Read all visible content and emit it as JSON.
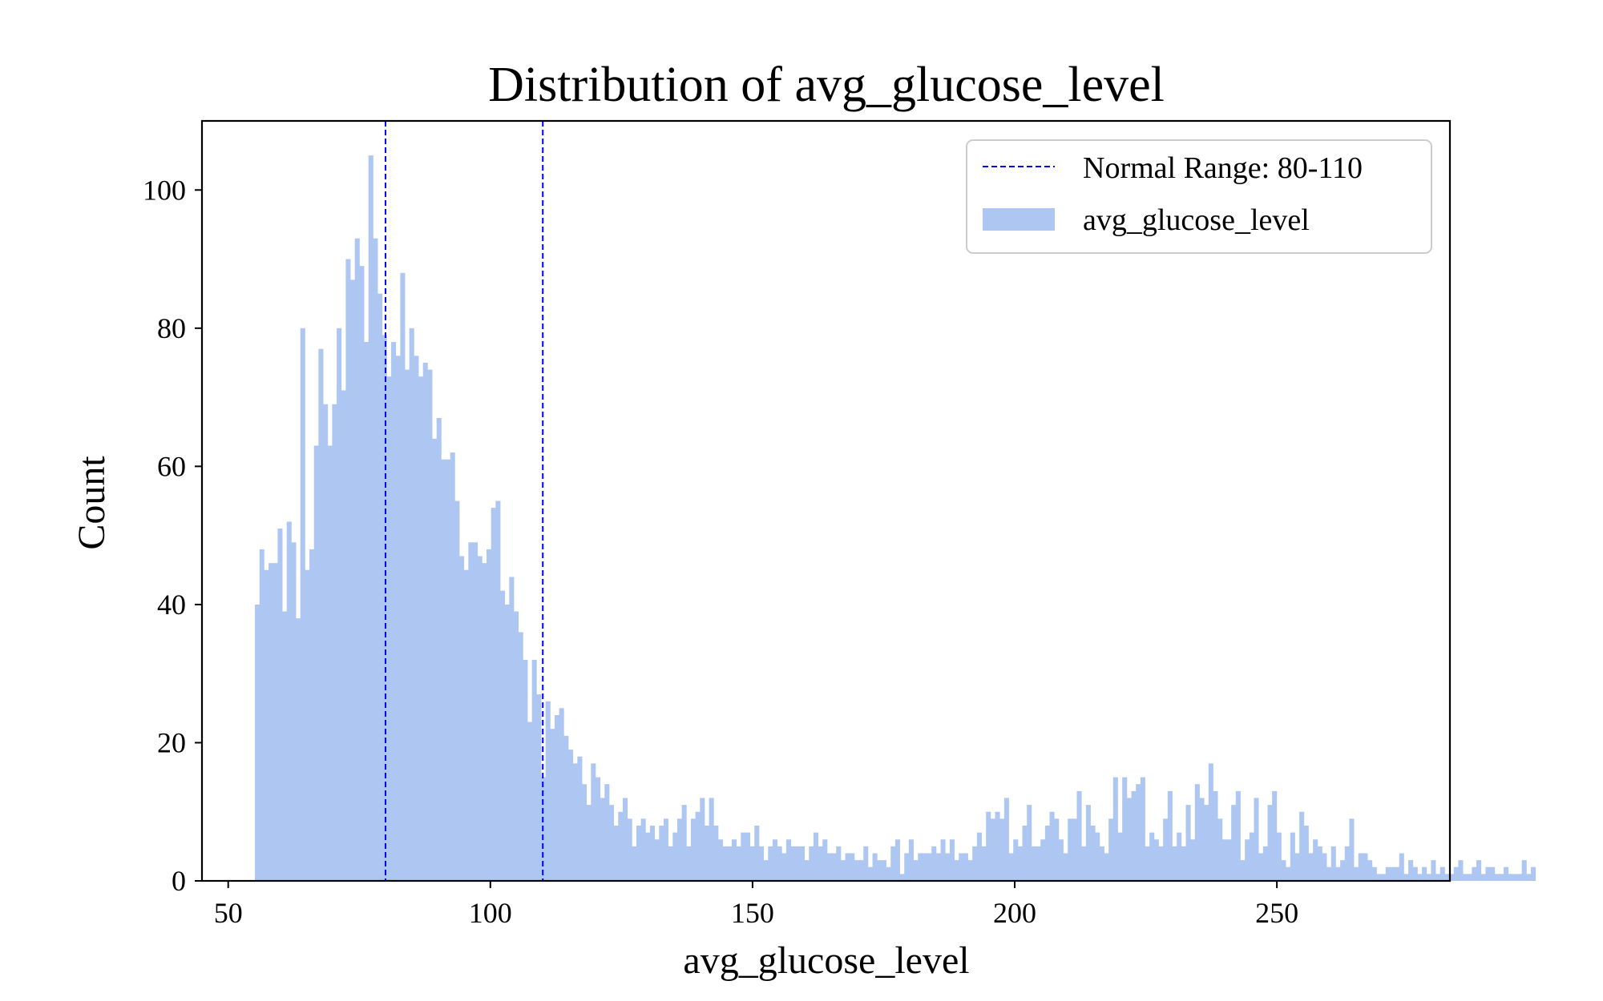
{
  "chart_data": {
    "type": "bar",
    "title": "Distribution of avg_glucose_level",
    "xlabel": "avg_glucose_level",
    "ylabel": "Count",
    "xlim": [
      45,
      283
    ],
    "ylim": [
      0,
      110
    ],
    "xticks": [
      50,
      100,
      150,
      200,
      250
    ],
    "yticks": [
      0,
      20,
      40,
      60,
      80,
      100
    ],
    "grid": false,
    "legend_position": "top-right",
    "colors": {
      "bars": "#aec7f2",
      "reference_lines": "#0000ff"
    },
    "reference_lines": {
      "name": "Normal Range: 80-110",
      "style": "dashed",
      "x": [
        80,
        110
      ]
    },
    "histogram": {
      "name": "avg_glucose_level",
      "bin_start": 55.1,
      "bin_width": 0.866,
      "counts": [
        40,
        48,
        45,
        46,
        46,
        51,
        39,
        52,
        49,
        38,
        80,
        45,
        48,
        63,
        77,
        69,
        63,
        69,
        80,
        71,
        90,
        87,
        93,
        89,
        78,
        105,
        93,
        85,
        79,
        73,
        78,
        76,
        88,
        74,
        80,
        76,
        73,
        75,
        74,
        64,
        67,
        61,
        61,
        62,
        55,
        47,
        45,
        49,
        49,
        47,
        46,
        48,
        54,
        55,
        42,
        40,
        44,
        39,
        36,
        32,
        23,
        32,
        27,
        15,
        26,
        22,
        24,
        25,
        21,
        19,
        17,
        18,
        14,
        11,
        17,
        15,
        12,
        14,
        11,
        8,
        10,
        12,
        9,
        5,
        8,
        9,
        7,
        8,
        6,
        8,
        9,
        5,
        7,
        9,
        11,
        5,
        9,
        10,
        12,
        8,
        12,
        8,
        6,
        5,
        5,
        6,
        5,
        7,
        7,
        5,
        8,
        5,
        3,
        5,
        6,
        5,
        4,
        6,
        5,
        5,
        5,
        3,
        5,
        7,
        5,
        6,
        4,
        4,
        5,
        3,
        4,
        4,
        3,
        3,
        5,
        2,
        4,
        3,
        3,
        2,
        5,
        6,
        1,
        4,
        6,
        3,
        4,
        4,
        4,
        5,
        4,
        6,
        4,
        6,
        3,
        4,
        4,
        3,
        5,
        7,
        5,
        10,
        9,
        10,
        9,
        12,
        4,
        6,
        5,
        8,
        11,
        5,
        5,
        6,
        8,
        10,
        9,
        6,
        4,
        9,
        9,
        13,
        5,
        11,
        8,
        7,
        5,
        4,
        9,
        15,
        7,
        15,
        12,
        13,
        14,
        15,
        5,
        7,
        6,
        5,
        9,
        13,
        5,
        7,
        5,
        11,
        6,
        14,
        12,
        11,
        17,
        13,
        9,
        6,
        6,
        11,
        13,
        3,
        6,
        7,
        12,
        4,
        5,
        11,
        13,
        7,
        3,
        2,
        7,
        4,
        10,
        8,
        4,
        6,
        5,
        4,
        2,
        5,
        2,
        3,
        5,
        9,
        2,
        4,
        4,
        3,
        2,
        1,
        1,
        2,
        2,
        2,
        4,
        1,
        3,
        2,
        1,
        2,
        1,
        3,
        1,
        2,
        1,
        1,
        2,
        3,
        1,
        1,
        2,
        3,
        1,
        2,
        2,
        1,
        1,
        2,
        1,
        1,
        1,
        3,
        1,
        2
      ]
    }
  }
}
